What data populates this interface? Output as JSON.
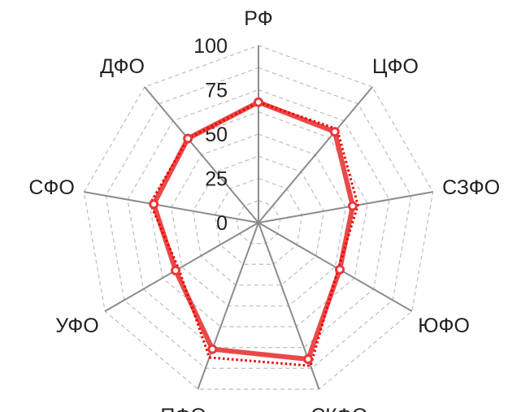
{
  "chart_data": {
    "type": "radar",
    "title": "",
    "categories": [
      "РФ",
      "ЦФО",
      "СЗФО",
      "ЮФО",
      "СКФО",
      "ПФО",
      "УФО",
      "СФО",
      "ДФО"
    ],
    "ticks": [
      "0",
      "25",
      "50",
      "75",
      "100"
    ],
    "rlim": [
      0,
      100
    ],
    "grid": true,
    "grid_style": "dashed",
    "series": [
      {
        "values": [
          68,
          67,
          54,
          53,
          82,
          76,
          54,
          60,
          62
        ],
        "color": "#e8393a",
        "style": "solid"
      },
      {
        "values": [
          68,
          69,
          57,
          52,
          86,
          81,
          52,
          62,
          62
        ],
        "color": "#ee0000",
        "style": "dotted"
      }
    ]
  }
}
